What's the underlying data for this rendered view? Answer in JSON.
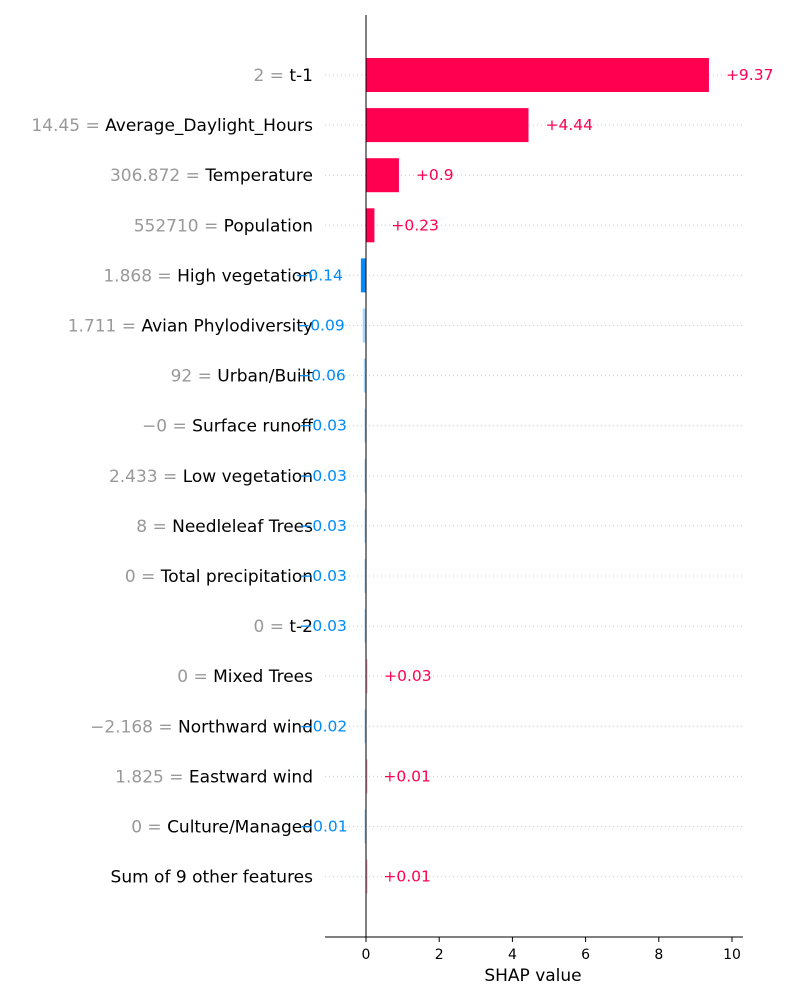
{
  "chart_data": {
    "type": "bar",
    "orientation": "horizontal",
    "xlabel": "SHAP value",
    "x_ticks": [
      "0",
      "2",
      "4",
      "6",
      "8",
      "10"
    ],
    "xlim": [
      -1.1,
      10.4
    ],
    "grid": "dotted horizontal guide lines per row",
    "zero_line": "vertical line at 0",
    "colors": {
      "positive": "#ff0051",
      "negative": "#008bfb",
      "value_gray": "#999999"
    },
    "rows": [
      {
        "value_label": "2 =",
        "feature": "t-1",
        "shap": 9.37,
        "label": "+9.37"
      },
      {
        "value_label": "14.45 =",
        "feature": "Average_Daylight_Hours",
        "shap": 4.44,
        "label": "+4.44"
      },
      {
        "value_label": "306.872 =",
        "feature": "Temperature",
        "shap": 0.9,
        "label": "+0.9"
      },
      {
        "value_label": "552710 =",
        "feature": "Population",
        "shap": 0.23,
        "label": "+0.23"
      },
      {
        "value_label": "1.868 =",
        "feature": "High vegetation",
        "shap": -0.14,
        "label": "−0.14"
      },
      {
        "value_label": "1.711 =",
        "feature": "Avian Phylodiversity",
        "shap": -0.09,
        "label": "−0.09"
      },
      {
        "value_label": "92 =",
        "feature": "Urban/Built",
        "shap": -0.06,
        "label": "−0.06"
      },
      {
        "value_label": "−0 =",
        "feature": "Surface runoff",
        "shap": -0.03,
        "label": "−0.03"
      },
      {
        "value_label": "2.433 =",
        "feature": "Low vegetation",
        "shap": -0.03,
        "label": "−0.03"
      },
      {
        "value_label": "8 =",
        "feature": "Needleleaf Trees",
        "shap": -0.03,
        "label": "−0.03"
      },
      {
        "value_label": "0 =",
        "feature": "Total precipitation",
        "shap": -0.03,
        "label": "−0.03"
      },
      {
        "value_label": "0 =",
        "feature": "t-2",
        "shap": -0.03,
        "label": "−0.03"
      },
      {
        "value_label": "0 =",
        "feature": "Mixed Trees",
        "shap": 0.03,
        "label": "+0.03"
      },
      {
        "value_label": "−2.168 =",
        "feature": "Northward wind",
        "shap": -0.02,
        "label": "−0.02"
      },
      {
        "value_label": "1.825 =",
        "feature": "Eastward wind",
        "shap": 0.01,
        "label": "+0.01"
      },
      {
        "value_label": "0 =",
        "feature": "Culture/Managed",
        "shap": -0.01,
        "label": "−0.01"
      },
      {
        "value_label": "",
        "feature": "Sum of 9 other features",
        "shap": 0.01,
        "label": "+0.01"
      }
    ]
  }
}
